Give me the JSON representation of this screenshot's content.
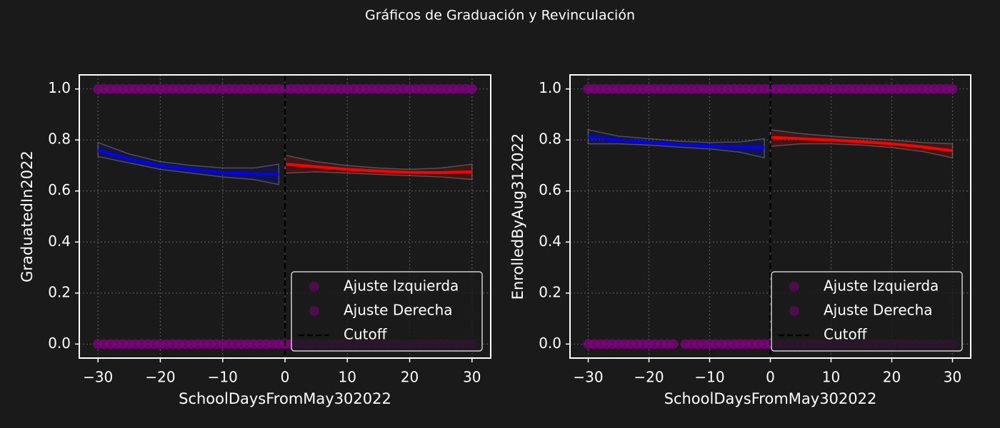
{
  "title": "Gráficos de Graduación y Revinculación",
  "chart_data": [
    {
      "type": "scatter",
      "xlabel": "SchoolDaysFromMay302022",
      "ylabel": "GraduatedIn2022",
      "xlim": [
        -33,
        33
      ],
      "ylim": [
        -0.055,
        1.055
      ],
      "xticks": [
        {
          "value": -30,
          "label": "−30"
        },
        {
          "value": -20,
          "label": "−20"
        },
        {
          "value": -10,
          "label": "−10"
        },
        0,
        10,
        20,
        30
      ],
      "yticks": [
        {
          "value": 0,
          "label": "0.0"
        },
        0.2,
        0.4,
        0.6,
        0.8,
        {
          "value": 1,
          "label": "1.0"
        }
      ],
      "grid": true,
      "legend": "lower right",
      "series": [
        {
          "name": "Ajuste Izquierda",
          "color": "#800080",
          "x": [
            -30,
            -29,
            -28,
            -27,
            -26,
            -25,
            -24,
            -23,
            -22,
            -21,
            -20,
            -19,
            -18,
            -17,
            -16,
            -15,
            -14,
            -13,
            -12,
            -11,
            -10,
            -9,
            -8,
            -7,
            -6,
            -5,
            -4,
            -3,
            -2,
            -1,
            -30,
            -29,
            -28,
            -27,
            -26,
            -25,
            -24,
            -23,
            -22,
            -21,
            -20,
            -19,
            -18,
            -17,
            -16,
            -15,
            -14,
            -13,
            -12,
            -11,
            -10,
            -9,
            -8,
            -7,
            -6,
            -5,
            -4,
            -3,
            -2,
            -1
          ],
          "values": [
            1,
            1,
            1,
            1,
            1,
            1,
            1,
            1,
            1,
            1,
            1,
            1,
            1,
            1,
            1,
            1,
            1,
            1,
            1,
            1,
            1,
            1,
            1,
            1,
            1,
            1,
            1,
            1,
            1,
            1,
            0,
            0,
            0,
            0,
            0,
            0,
            0,
            0,
            0,
            0,
            0,
            0,
            0,
            0,
            0,
            0,
            0,
            0,
            0,
            0,
            0,
            0,
            0,
            0,
            0,
            0,
            0,
            0,
            0,
            0
          ]
        },
        {
          "name": "Ajuste Derecha",
          "color": "#800080",
          "x": [
            0,
            1,
            2,
            3,
            4,
            5,
            6,
            7,
            8,
            9,
            10,
            11,
            12,
            13,
            14,
            15,
            16,
            17,
            18,
            19,
            20,
            21,
            22,
            23,
            24,
            25,
            26,
            27,
            28,
            29,
            30,
            0,
            1,
            2,
            3,
            4,
            5,
            6,
            7,
            8,
            9,
            10,
            11,
            12,
            13,
            14,
            15,
            16,
            17,
            18,
            19,
            20,
            21,
            22,
            23,
            24,
            25,
            26,
            27,
            28,
            29,
            30
          ],
          "values": [
            1,
            1,
            1,
            1,
            1,
            1,
            1,
            1,
            1,
            1,
            1,
            1,
            1,
            1,
            1,
            1,
            1,
            1,
            1,
            1,
            1,
            1,
            1,
            1,
            1,
            1,
            1,
            1,
            1,
            1,
            1,
            0,
            0,
            0,
            0,
            0,
            0,
            0,
            0,
            0,
            0,
            0,
            0,
            0,
            0,
            0,
            0,
            0,
            0,
            0,
            0,
            0,
            0,
            0,
            0,
            0,
            0,
            0,
            0,
            0,
            0,
            0
          ]
        }
      ],
      "fits": [
        {
          "color": "#0000ff",
          "x": [
            -30,
            -25,
            -20,
            -15,
            -10,
            -5,
            -1
          ],
          "values": [
            0.76,
            0.725,
            0.7,
            0.685,
            0.672,
            0.666,
            0.665
          ],
          "lower": [
            0.735,
            0.71,
            0.685,
            0.67,
            0.655,
            0.645,
            0.625
          ],
          "upper": [
            0.79,
            0.745,
            0.715,
            0.7,
            0.69,
            0.69,
            0.705
          ]
        },
        {
          "color": "#ff0000",
          "x": [
            0,
            5,
            10,
            15,
            20,
            25,
            30
          ],
          "values": [
            0.705,
            0.695,
            0.685,
            0.678,
            0.673,
            0.672,
            0.675
          ],
          "lower": [
            0.67,
            0.675,
            0.67,
            0.665,
            0.66,
            0.655,
            0.645
          ],
          "upper": [
            0.74,
            0.715,
            0.7,
            0.69,
            0.685,
            0.69,
            0.705
          ]
        }
      ],
      "cutoff": {
        "name": "Cutoff",
        "x": 0,
        "color": "#000000"
      }
    },
    {
      "type": "scatter",
      "xlabel": "SchoolDaysFromMay302022",
      "ylabel": "EnrolledByAug312022",
      "xlim": [
        -33,
        33
      ],
      "ylim": [
        -0.055,
        1.055
      ],
      "xticks": [
        {
          "value": -30,
          "label": "−30"
        },
        {
          "value": -20,
          "label": "−20"
        },
        {
          "value": -10,
          "label": "−10"
        },
        0,
        10,
        20,
        30
      ],
      "yticks": [
        {
          "value": 0,
          "label": "0.0"
        },
        0.2,
        0.4,
        0.6,
        0.8,
        {
          "value": 1,
          "label": "1.0"
        }
      ],
      "grid": true,
      "legend": "lower right",
      "series": [
        {
          "name": "Ajuste Izquierda",
          "color": "#800080",
          "x": [
            -30,
            -29,
            -28,
            -27,
            -26,
            -25,
            -24,
            -23,
            -22,
            -21,
            -20,
            -19,
            -18,
            -17,
            -16,
            -15,
            -14,
            -13,
            -12,
            -11,
            -10,
            -9,
            -8,
            -7,
            -6,
            -5,
            -4,
            -3,
            -2,
            -1,
            -30,
            -29,
            -28,
            -27,
            -26,
            -25,
            -24,
            -23,
            -22,
            -21,
            -20,
            -19,
            -18,
            -17,
            -16,
            -14,
            -13,
            -12,
            -11,
            -10,
            -9,
            -8,
            -7,
            -6,
            -5,
            -4,
            -3,
            -2,
            -1
          ],
          "values": [
            1,
            1,
            1,
            1,
            1,
            1,
            1,
            1,
            1,
            1,
            1,
            1,
            1,
            1,
            1,
            1,
            1,
            1,
            1,
            1,
            1,
            1,
            1,
            1,
            1,
            1,
            1,
            1,
            1,
            1,
            0,
            0,
            0,
            0,
            0,
            0,
            0,
            0,
            0,
            0,
            0,
            0,
            0,
            0,
            0,
            0,
            0,
            0,
            0,
            0,
            0,
            0,
            0,
            0,
            0,
            0,
            0,
            0,
            0
          ]
        },
        {
          "name": "Ajuste Derecha",
          "color": "#800080",
          "x": [
            0,
            1,
            2,
            3,
            4,
            5,
            6,
            7,
            8,
            9,
            10,
            11,
            12,
            13,
            14,
            15,
            16,
            17,
            18,
            19,
            20,
            21,
            22,
            23,
            24,
            25,
            26,
            27,
            28,
            29,
            30,
            0,
            1,
            2,
            3,
            4,
            5,
            6,
            7,
            8,
            9,
            10,
            11,
            12,
            13,
            14,
            15,
            16,
            17,
            18,
            19,
            20,
            21,
            22,
            23,
            24,
            25,
            26,
            27,
            28,
            29,
            30
          ],
          "values": [
            1,
            1,
            1,
            1,
            1,
            1,
            1,
            1,
            1,
            1,
            1,
            1,
            1,
            1,
            1,
            1,
            1,
            1,
            1,
            1,
            1,
            1,
            1,
            1,
            1,
            1,
            1,
            1,
            1,
            1,
            1,
            0,
            0,
            0,
            0,
            0,
            0,
            0,
            0,
            0,
            0,
            0,
            0,
            0,
            0,
            0,
            0,
            0,
            0,
            0,
            0,
            0,
            0,
            0,
            0,
            0,
            0,
            0,
            0,
            0,
            0,
            0
          ]
        }
      ],
      "fits": [
        {
          "color": "#0000ff",
          "x": [
            -30,
            -25,
            -20,
            -15,
            -10,
            -5,
            -1
          ],
          "values": [
            0.81,
            0.8,
            0.79,
            0.783,
            0.777,
            0.772,
            0.77
          ],
          "lower": [
            0.785,
            0.785,
            0.78,
            0.772,
            0.765,
            0.752,
            0.73
          ],
          "upper": [
            0.84,
            0.815,
            0.805,
            0.795,
            0.79,
            0.792,
            0.805
          ]
        },
        {
          "color": "#ff0000",
          "x": [
            0,
            5,
            10,
            15,
            20,
            25,
            30
          ],
          "values": [
            0.81,
            0.805,
            0.8,
            0.793,
            0.785,
            0.773,
            0.758
          ],
          "lower": [
            0.775,
            0.785,
            0.785,
            0.78,
            0.77,
            0.755,
            0.73
          ],
          "upper": [
            0.84,
            0.825,
            0.815,
            0.807,
            0.8,
            0.79,
            0.785
          ]
        }
      ],
      "cutoff": {
        "name": "Cutoff",
        "x": 0,
        "color": "#000000"
      }
    }
  ]
}
